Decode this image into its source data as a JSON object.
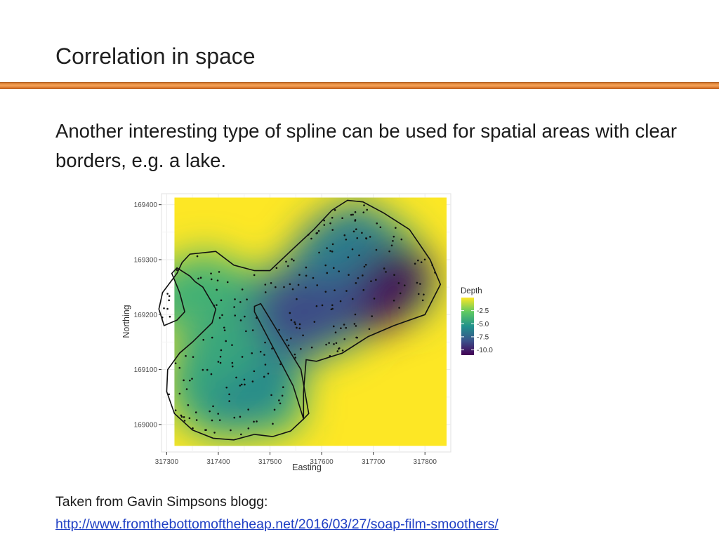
{
  "slide": {
    "title": "Correlation in space",
    "body": "Another interesting type of spline can be used for spatial areas with clear borders, e.g. a lake.",
    "source_label": "Taken from Gavin Simpsons blogg:",
    "source_url": "http://www.fromthebottomoftheheap.net/2016/03/27/soap-film-smoothers/"
  },
  "colors": {
    "title_rule": "#d9762c",
    "link": "#1f3fc4",
    "lake_outline": "#111111"
  },
  "chart_data": {
    "type": "heatmap",
    "xlabel": "Easting",
    "ylabel": "Northing",
    "xlim": [
      317290,
      317850
    ],
    "ylim": [
      168950,
      169420
    ],
    "x_ticks": [
      317300,
      317400,
      317500,
      317600,
      317700,
      317800
    ],
    "y_ticks": [
      169000,
      169100,
      169200,
      169300,
      169400
    ],
    "colorbar": {
      "title": "Depth",
      "ticks": [
        -2.5,
        -5.0,
        -7.5,
        -10.0
      ],
      "tick_labels": [
        "-2.5",
        "-5.0",
        "-7.5",
        "-10.0"
      ],
      "range": [
        -11,
        0
      ],
      "colors": [
        "#fde725",
        "#5ec962",
        "#21918c",
        "#3b528b",
        "#440154"
      ],
      "placement": "right"
    },
    "grid": true,
    "surface_extent": {
      "x": [
        317315,
        317842
      ],
      "y": [
        168961,
        169413
      ]
    },
    "depth_centers": [
      {
        "x": 317705,
        "y": 169245,
        "depth": -11.0
      },
      {
        "x": 317570,
        "y": 169210,
        "depth": -8.5
      },
      {
        "x": 317640,
        "y": 169330,
        "depth": -6.5
      },
      {
        "x": 317460,
        "y": 169070,
        "depth": -6.0
      },
      {
        "x": 317400,
        "y": 169130,
        "depth": -4.5
      },
      {
        "x": 317340,
        "y": 169240,
        "depth": -4.0
      }
    ],
    "lake_boundary": [
      [
        317620,
        169390
      ],
      [
        317650,
        169408
      ],
      [
        317680,
        169405
      ],
      [
        317720,
        169385
      ],
      [
        317770,
        169355
      ],
      [
        317810,
        169300
      ],
      [
        317830,
        169255
      ],
      [
        317800,
        169200
      ],
      [
        317740,
        169180
      ],
      [
        317690,
        169160
      ],
      [
        317640,
        169130
      ],
      [
        317590,
        169115
      ],
      [
        317570,
        169118
      ],
      [
        317565,
        169060
      ],
      [
        317565,
        169010
      ],
      [
        317540,
        168988
      ],
      [
        317505,
        168978
      ],
      [
        317470,
        168982
      ],
      [
        317430,
        168972
      ],
      [
        317390,
        168975
      ],
      [
        317350,
        168990
      ],
      [
        317315,
        169020
      ],
      [
        317300,
        169060
      ],
      [
        317302,
        169100
      ],
      [
        317325,
        169130
      ],
      [
        317350,
        169150
      ],
      [
        317388,
        169185
      ],
      [
        317395,
        169210
      ],
      [
        317370,
        169250
      ],
      [
        317355,
        169260
      ],
      [
        317345,
        169270
      ],
      [
        317320,
        169285
      ],
      [
        317310,
        169275
      ],
      [
        317325,
        169240
      ],
      [
        317335,
        169205
      ],
      [
        317320,
        169190
      ],
      [
        317295,
        169180
      ],
      [
        317285,
        169210
      ],
      [
        317292,
        169240
      ],
      [
        317320,
        169275
      ],
      [
        317330,
        169295
      ],
      [
        317345,
        169310
      ],
      [
        317395,
        169315
      ],
      [
        317430,
        169290
      ],
      [
        317470,
        169280
      ],
      [
        317500,
        169280
      ],
      [
        317545,
        169320
      ],
      [
        317585,
        169355
      ]
    ],
    "island_boundary": [
      [
        317470,
        169215
      ],
      [
        317482,
        169220
      ],
      [
        317560,
        169100
      ],
      [
        317575,
        169020
      ],
      [
        317565,
        169010
      ],
      [
        317545,
        169070
      ],
      [
        317470,
        169205
      ]
    ],
    "sample_count": 260
  }
}
